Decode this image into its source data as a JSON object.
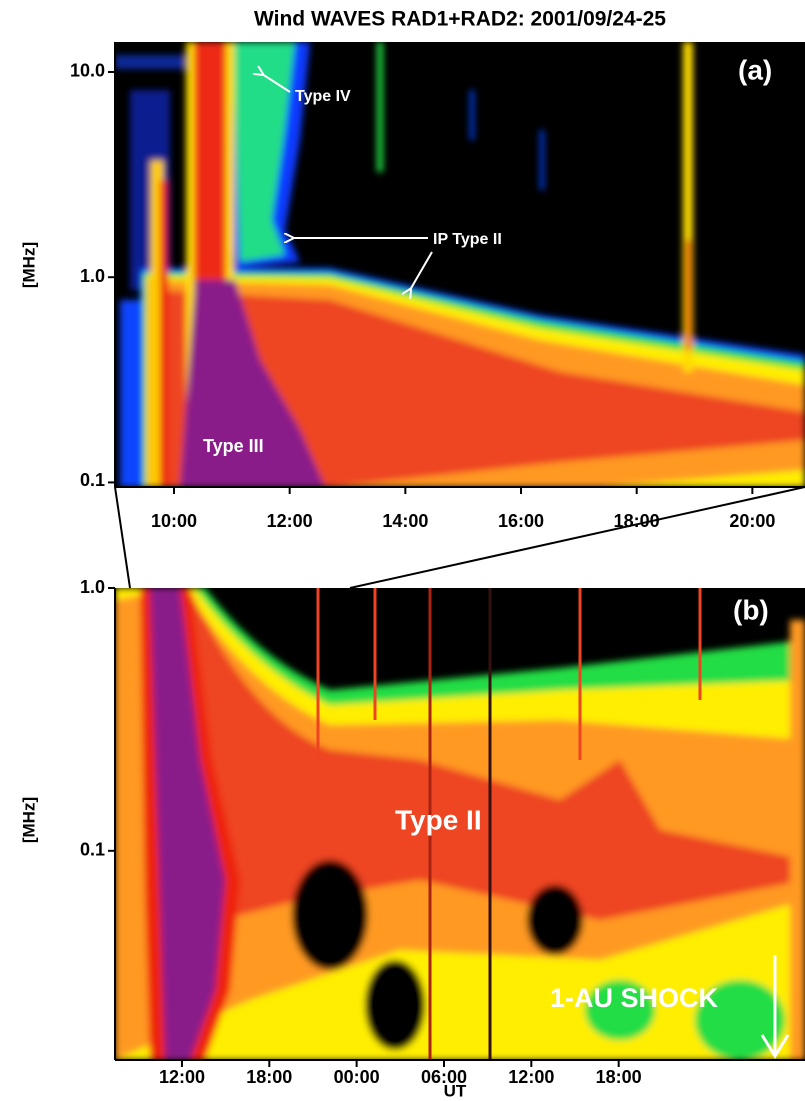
{
  "chart_data": [
    {
      "type": "spectrogram",
      "title": "Wind WAVES RAD1+RAD2: 2001/09/24-25",
      "panel_label": "(a)",
      "y_label": "[MHz]",
      "y_scale": "log",
      "xlim": [
        8.98,
        20.91
      ],
      "ylim": [
        0.095,
        14
      ],
      "xticks": [
        {
          "value": 10,
          "label": "10:00"
        },
        {
          "value": 12,
          "label": "12:00"
        },
        {
          "value": 14,
          "label": "14:00"
        },
        {
          "value": 16,
          "label": "16:00"
        },
        {
          "value": 18,
          "label": "18:00"
        },
        {
          "value": 20,
          "label": "20:00"
        }
      ],
      "yticks": [
        {
          "value": 10,
          "label": "10.0"
        },
        {
          "value": 1,
          "label": "1.0"
        },
        0.1
      ],
      "annotations": [
        "Type IV",
        "IP Type II",
        "Type III"
      ]
    },
    {
      "type": "spectrogram",
      "panel_label": "(b)",
      "y_label": "[MHz]",
      "x_label": "UT",
      "y_scale": "log",
      "xlim": [
        7.4,
        54.8
      ],
      "ylim": [
        0.016,
        1
      ],
      "xticks": [
        {
          "value": 12,
          "label": "12:00"
        },
        {
          "value": 18,
          "label": "18:00"
        },
        {
          "value": 24,
          "label": "00:00"
        },
        {
          "value": 30,
          "label": "06:00"
        },
        {
          "value": 36,
          "label": "12:00"
        },
        {
          "value": 42,
          "label": "18:00"
        }
      ],
      "yticks": [
        {
          "value": 1,
          "label": "1.0"
        },
        0.1
      ],
      "annotations": [
        "Type II",
        "1-AU SHOCK"
      ]
    }
  ]
}
